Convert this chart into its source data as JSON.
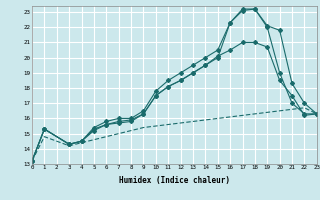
{
  "xlabel": "Humidex (Indice chaleur)",
  "bg_color": "#cce8ec",
  "grid_color": "#ffffff",
  "line_color": "#1a6b6b",
  "xlim": [
    0,
    23
  ],
  "ylim": [
    13,
    23.4
  ],
  "yticks": [
    13,
    14,
    15,
    16,
    17,
    18,
    19,
    20,
    21,
    22,
    23
  ],
  "xticks": [
    0,
    1,
    2,
    3,
    4,
    5,
    6,
    7,
    8,
    9,
    10,
    11,
    12,
    13,
    14,
    15,
    16,
    17,
    18,
    19,
    20,
    21,
    22,
    23
  ],
  "series1_x": [
    0,
    1,
    3,
    4,
    5,
    6,
    7,
    8,
    9,
    10,
    11,
    12,
    13,
    14,
    15,
    16,
    17,
    18,
    19,
    20,
    21,
    22,
    23
  ],
  "series1_y": [
    13.2,
    15.3,
    14.3,
    14.5,
    15.3,
    15.6,
    15.7,
    15.8,
    16.3,
    17.5,
    18.1,
    18.5,
    19.0,
    19.5,
    20.1,
    20.5,
    21.0,
    21.0,
    20.7,
    18.5,
    17.5,
    16.2,
    16.3
  ],
  "series2_x": [
    0,
    1,
    3,
    4,
    5,
    6,
    7,
    8,
    9,
    10,
    11,
    12,
    13,
    14,
    15,
    16,
    17,
    18,
    19,
    20,
    21,
    22,
    23
  ],
  "series2_y": [
    13.2,
    15.3,
    14.3,
    14.5,
    15.4,
    15.8,
    16.0,
    16.0,
    16.5,
    17.8,
    18.5,
    19.0,
    19.5,
    20.0,
    20.5,
    22.3,
    23.2,
    23.2,
    22.0,
    19.0,
    17.0,
    16.3,
    16.3
  ],
  "series3_x": [
    0,
    1,
    3,
    4,
    5,
    6,
    7,
    8,
    9,
    10,
    11,
    12,
    13,
    14,
    15,
    16,
    17,
    18,
    19,
    20,
    21,
    22,
    23
  ],
  "series3_y": [
    13.2,
    15.3,
    14.3,
    14.5,
    15.2,
    15.6,
    15.8,
    15.9,
    16.3,
    17.5,
    18.1,
    18.5,
    19.0,
    19.5,
    20.0,
    22.3,
    23.1,
    23.2,
    22.1,
    21.8,
    18.3,
    17.0,
    16.3
  ],
  "series4_x": [
    0,
    1,
    3,
    4,
    5,
    6,
    7,
    8,
    9,
    10,
    11,
    12,
    13,
    14,
    15,
    16,
    17,
    18,
    19,
    20,
    21,
    22,
    23
  ],
  "series4_y": [
    13.2,
    14.8,
    14.2,
    14.4,
    14.6,
    14.8,
    15.0,
    15.2,
    15.4,
    15.5,
    15.6,
    15.7,
    15.8,
    15.9,
    16.0,
    16.1,
    16.2,
    16.3,
    16.4,
    16.5,
    16.6,
    16.7,
    16.3
  ]
}
